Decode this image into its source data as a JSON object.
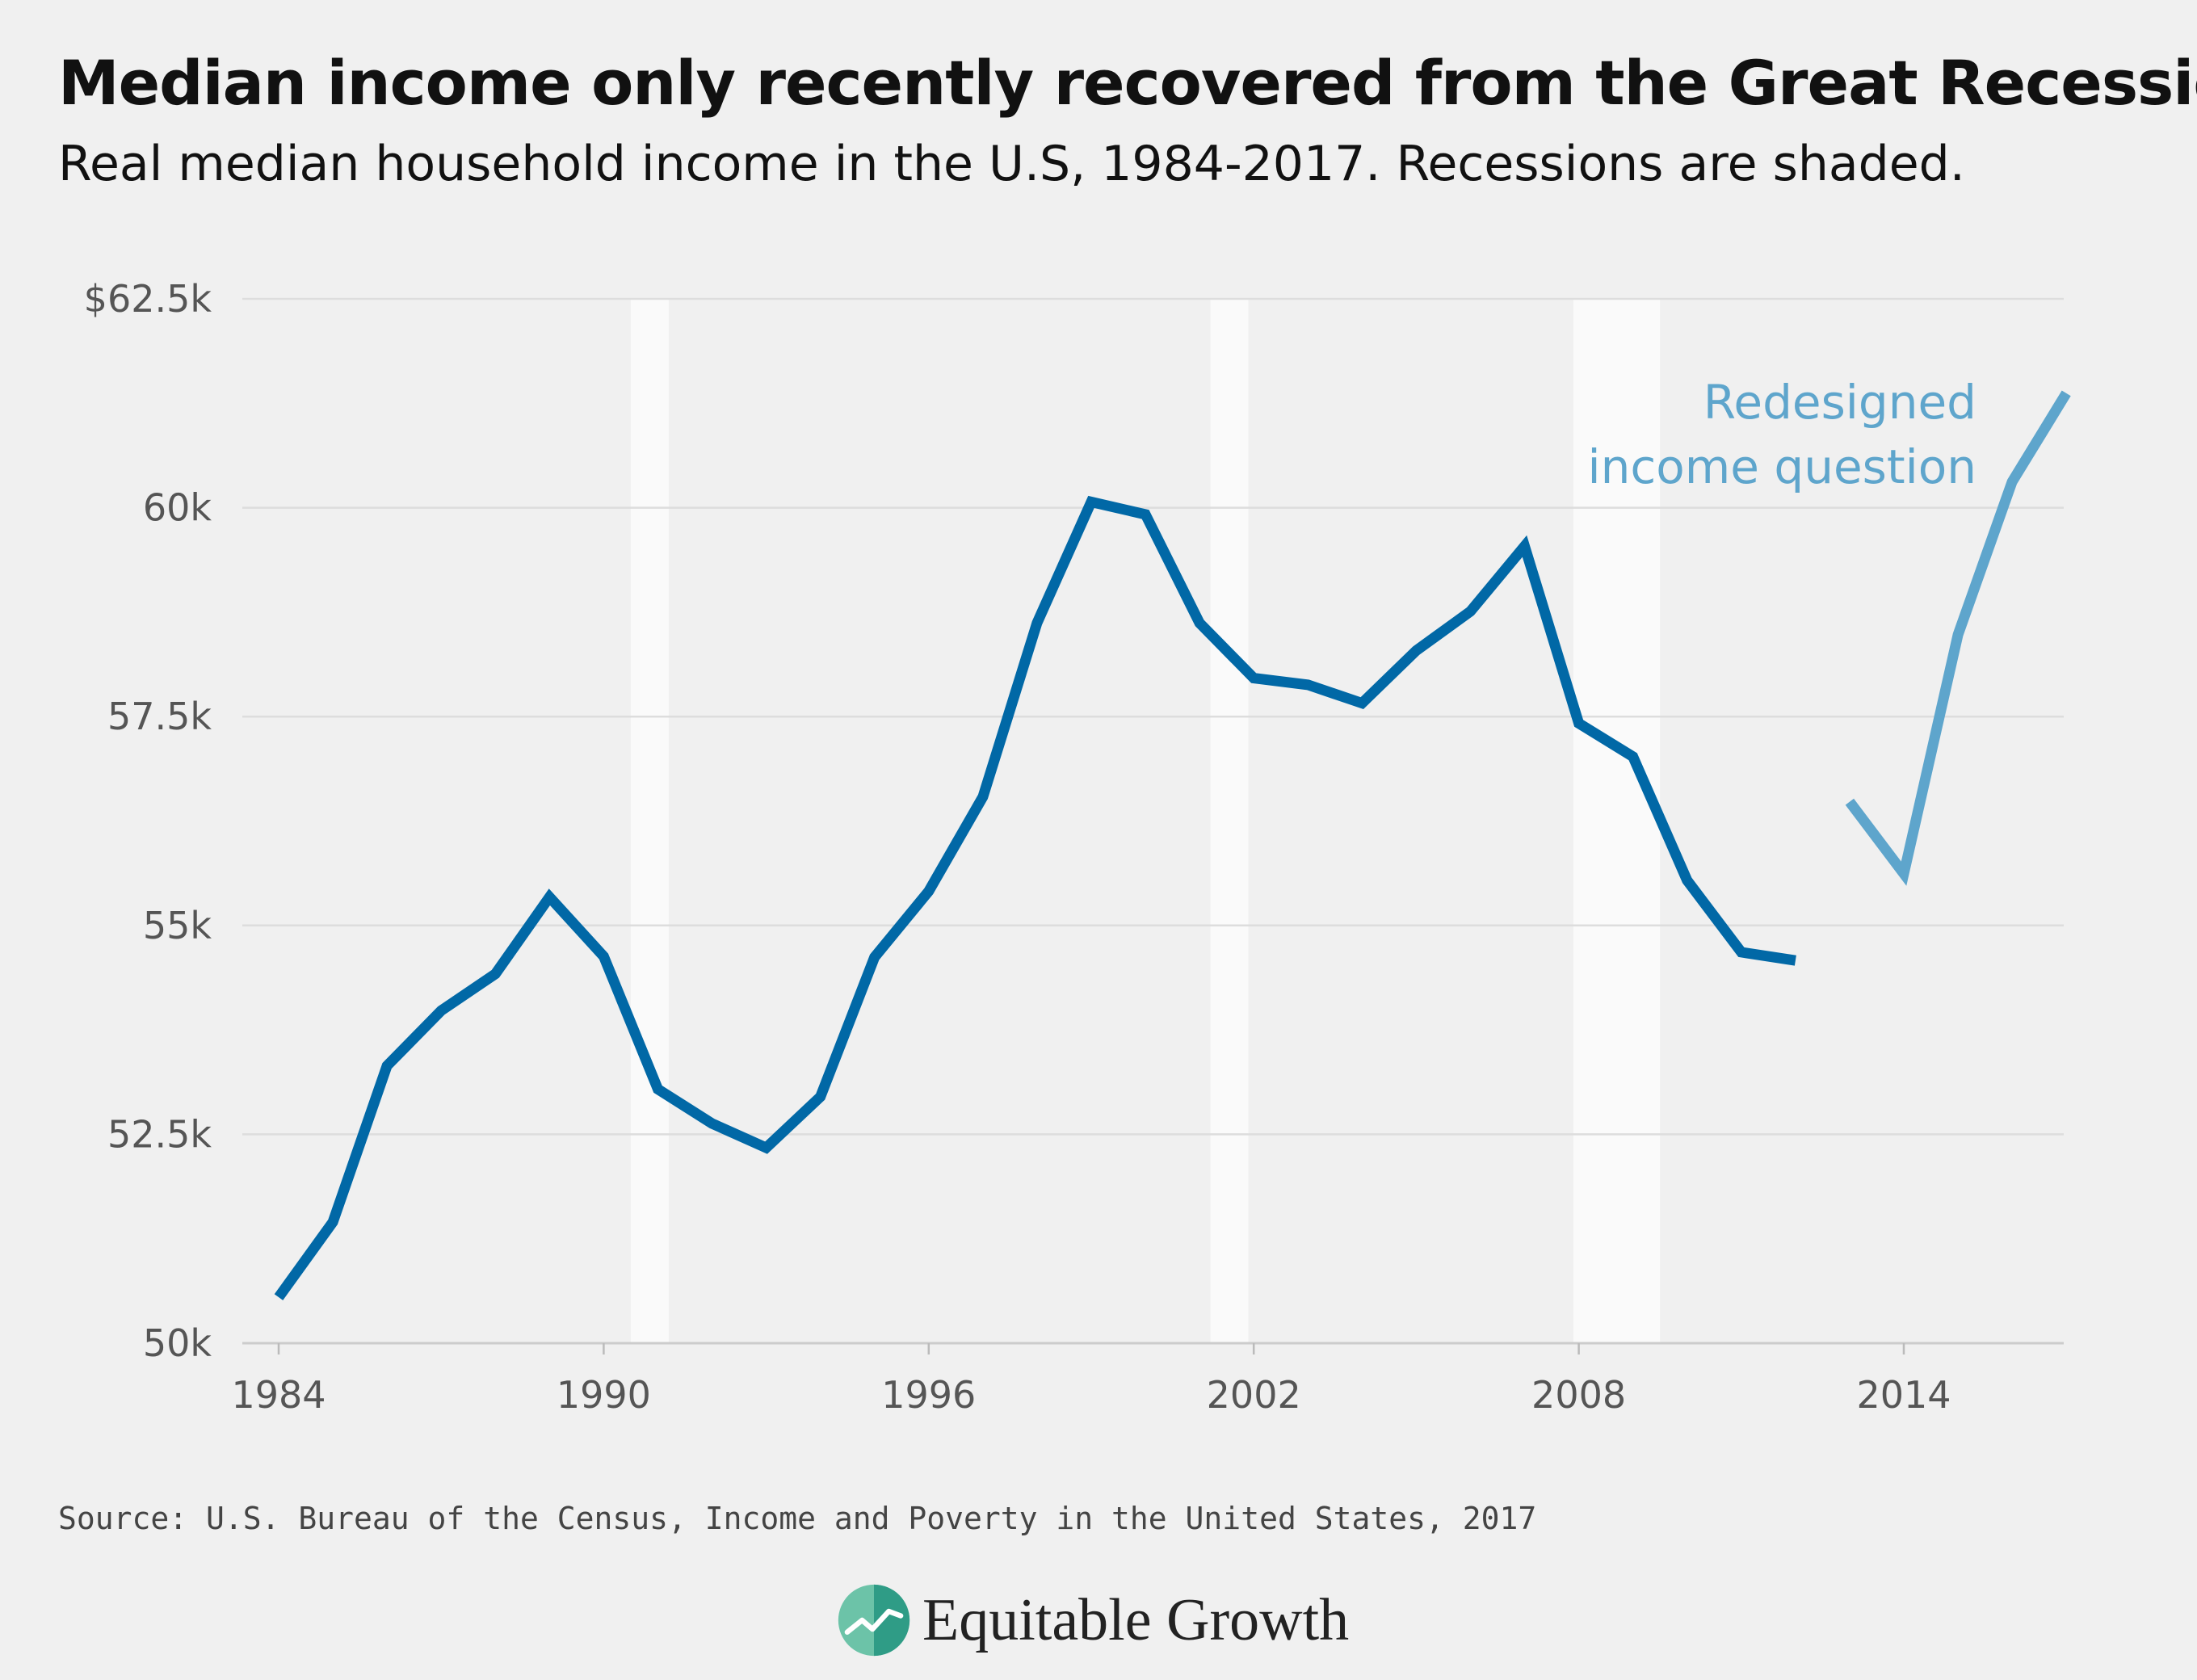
{
  "title": "Median income only recently recovered from the Great Recession",
  "subtitle": "Real median household income in the U.S, 1984-2017. Recessions are shaded.",
  "source": "Source: U.S. Bureau of the Census, Income and Poverty in the United States, 2017",
  "brand": {
    "name": "Equitable Growth",
    "icon": "equitable-growth-logo-icon"
  },
  "colors": {
    "background": "#f0f0f0",
    "gridline": "#dddddd",
    "recession_band": "#fafafa",
    "series_original": "#0168a6",
    "series_redesigned": "#5ea5cc",
    "tick_label": "#555555"
  },
  "chart_data": {
    "type": "line",
    "title": "Median income only recently recovered from the Great Recession",
    "subtitle": "Real median household income in the U.S, 1984-2017. Recessions are shaded.",
    "xlabel": "",
    "ylabel": "",
    "xlim": [
      1984,
      2017
    ],
    "ylim": [
      50000,
      62500
    ],
    "grid": true,
    "legend": "none",
    "x_ticks": [
      1984,
      1990,
      1996,
      2002,
      2008,
      2014
    ],
    "x_tick_labels": [
      "1984",
      "1990",
      "1996",
      "2002",
      "2008",
      "2014"
    ],
    "y_ticks": [
      50000,
      52500,
      55000,
      57500,
      60000,
      62500
    ],
    "y_tick_labels": [
      "50k",
      "52.5k",
      "55k",
      "57.5k",
      "60k",
      "$62.5k"
    ],
    "recessions": [
      {
        "start": 1990.5,
        "end": 1991.2
      },
      {
        "start": 2001.2,
        "end": 2001.9
      },
      {
        "start": 2007.9,
        "end": 2009.5
      }
    ],
    "series": [
      {
        "color": "#0168a6",
        "x": [
          1984,
          1985,
          1986,
          1987,
          1988,
          1989,
          1990,
          1991,
          1992,
          1993,
          1994,
          1995,
          1996,
          1997,
          1998,
          1999,
          2000,
          2001,
          2002,
          2003,
          2004,
          2005,
          2006,
          2007,
          2008,
          2009,
          2010,
          2011,
          2012
        ],
        "y": [
          50550,
          51450,
          53320,
          53980,
          54420,
          55340,
          54630,
          53040,
          52630,
          52340,
          52950,
          54620,
          55410,
          56540,
          58620,
          60070,
          59920,
          58620,
          57960,
          57880,
          57660,
          58290,
          58760,
          59540,
          57420,
          57020,
          55540,
          54680,
          54580
        ]
      },
      {
        "color": "#5ea5cc",
        "x": [
          2013,
          2014,
          2015,
          2016,
          2017
        ],
        "y": [
          56480,
          55620,
          58480,
          60310,
          61370
        ]
      }
    ],
    "annotations": [
      {
        "lines": [
          "Redesigned",
          "income question"
        ],
        "color": "#5ea5cc"
      }
    ]
  }
}
